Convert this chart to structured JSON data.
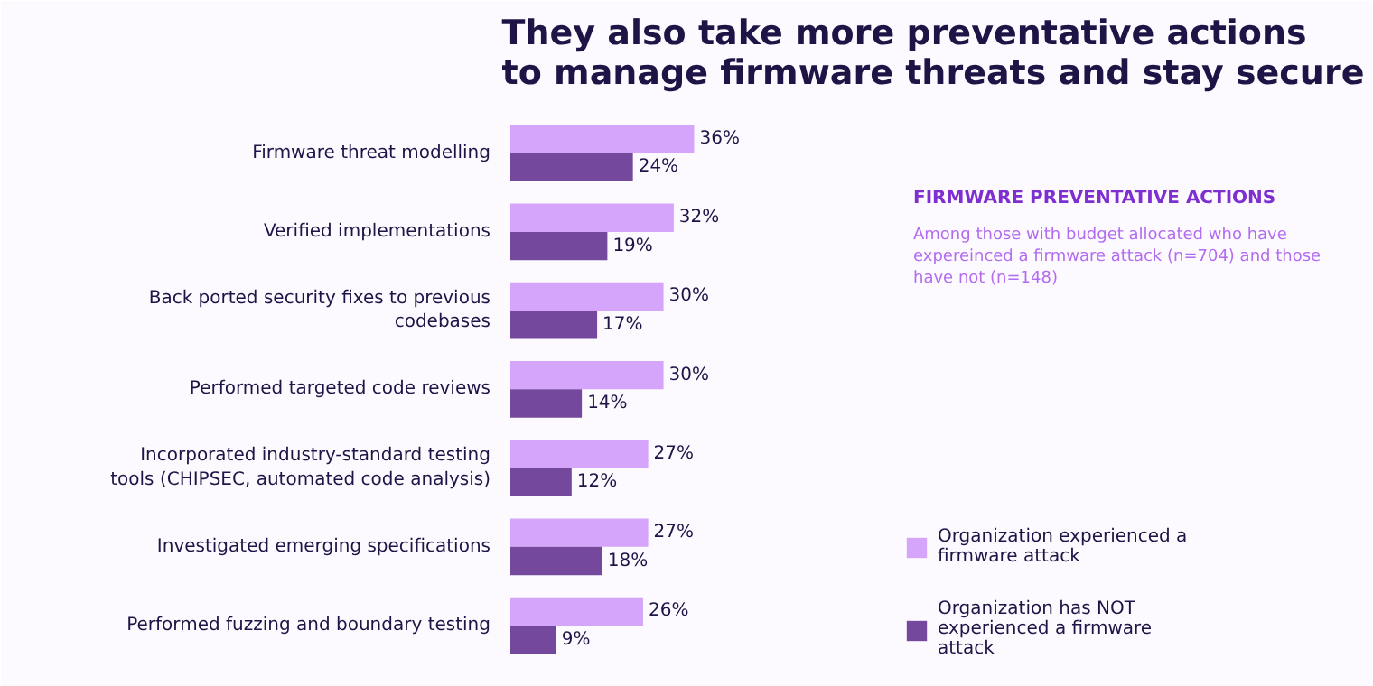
{
  "chart_data": {
    "type": "bar",
    "orientation": "horizontal",
    "title": "They also take more preventative actions to manage firmware threats and stay secure",
    "legend_title": "FIRMWARE PREVENTATIVE ACTIONS",
    "annotations": [
      "Among those with budget allocated who have expereinced a firmware attack (n=704) and those have not (n=148)"
    ],
    "categories": [
      "Firmware threat modelling",
      "Verified implementations",
      "Back ported security fixes to previous codebases",
      "Performed targeted code reviews",
      "Incorporated industry-standard testing tools (CHIPSEC, automated code analysis)",
      "Investigated emerging specifications",
      "Performed fuzzing and boundary testing"
    ],
    "series": [
      {
        "name": "Organization experienced a firmware attack",
        "color": "#d4a5fa",
        "values": [
          36,
          32,
          30,
          30,
          27,
          27,
          26
        ],
        "value_labels": [
          "36%",
          "32%",
          "30%",
          "30%",
          "27%",
          "27%",
          "26%"
        ]
      },
      {
        "name": "Organization has NOT experienced a firmware attack",
        "color": "#74489d",
        "values": [
          24,
          19,
          17,
          14,
          12,
          18,
          9
        ],
        "value_labels": [
          "24%",
          "19%",
          "17%",
          "14%",
          "12%",
          "18%",
          "9%"
        ]
      }
    ],
    "legend": "right",
    "grid": false
  }
}
